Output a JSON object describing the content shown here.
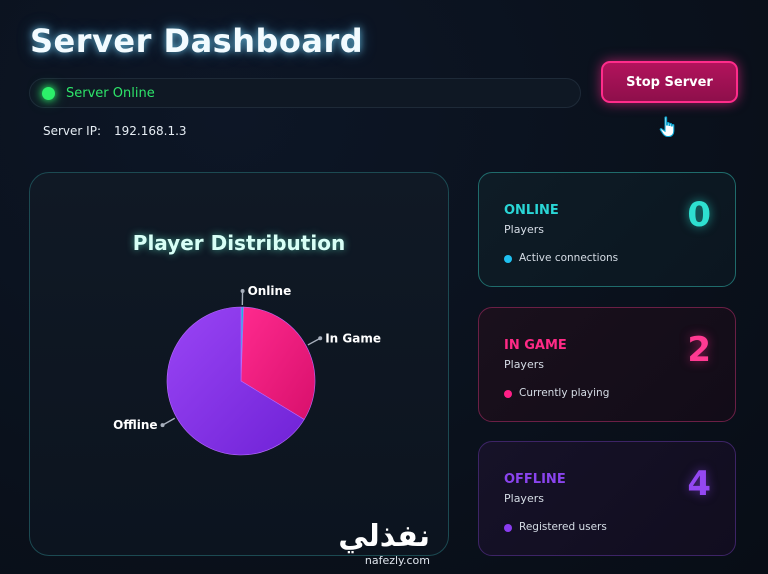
{
  "header": {
    "title": "Server Dashboard"
  },
  "status": {
    "text": "Server Online",
    "color": "#2cf06a"
  },
  "actions": {
    "stop_label": "Stop Server"
  },
  "server": {
    "ip_label": "Server IP:",
    "ip_value": "192.168.1.3"
  },
  "chart_data": {
    "type": "pie",
    "title": "Player Distribution",
    "slices": [
      {
        "label": "Online",
        "value": 0,
        "color": "#1fb4e0"
      },
      {
        "label": "In Game",
        "value": 2,
        "color": "#ff1f87"
      },
      {
        "label": "Offline",
        "value": 4,
        "color": "#8a3cf0"
      }
    ]
  },
  "cards": [
    {
      "title": "ONLINE",
      "subtitle": "Players",
      "count": "0",
      "desc": "Active connections",
      "color": "#2ad6d6",
      "dot": "#1fc0f0"
    },
    {
      "title": "IN GAME",
      "subtitle": "Players",
      "count": "2",
      "desc": "Currently playing",
      "color": "#ff2a86",
      "dot": "#ff1f87"
    },
    {
      "title": "OFFLINE",
      "subtitle": "Players",
      "count": "4",
      "desc": "Registered users",
      "color": "#8a44ee",
      "dot": "#8a3cf0"
    }
  ],
  "watermark": {
    "arabic": "نفذلي",
    "latin": "nafezly.com"
  }
}
